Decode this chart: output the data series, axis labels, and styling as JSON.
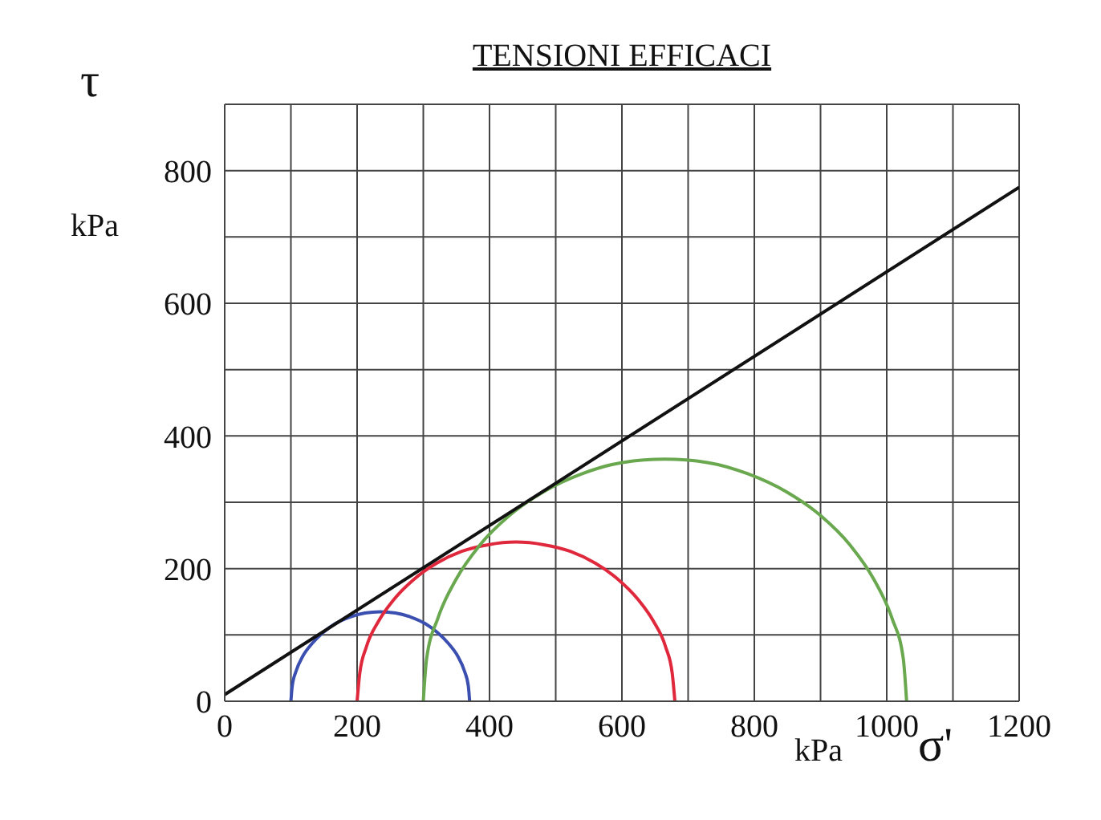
{
  "chart_data": {
    "type": "line",
    "title": "TENSIONI EFFICACI",
    "xlabel": "σ'",
    "ylabel": "τ",
    "annotations": [
      "kPa",
      "kPa"
    ],
    "xlim": [
      0,
      1200
    ],
    "ylim": [
      0,
      900
    ],
    "xticks": [
      0,
      {
        "value": 100,
        "label": null
      },
      200,
      {
        "value": 300,
        "label": null
      },
      400,
      {
        "value": 500,
        "label": null
      },
      600,
      {
        "value": 700,
        "label": null
      },
      800,
      {
        "value": 900,
        "label": null
      },
      1000,
      {
        "value": 1100,
        "label": null
      },
      1200
    ],
    "yticks": [
      0,
      {
        "value": 100,
        "label": null
      },
      200,
      {
        "value": 300,
        "label": null
      },
      400,
      {
        "value": 500,
        "label": null
      },
      600,
      {
        "value": 700,
        "label": null
      },
      800,
      {
        "value": 900,
        "label": null
      }
    ],
    "grid": true,
    "series": [
      {
        "color": "#3a4fb0",
        "x": [
          100,
          102,
          108,
          118,
          132,
          148,
          167,
          189,
          212,
          235,
          258,
          281,
          303,
          322,
          338,
          352,
          362,
          368,
          370
        ],
        "values": [
          0,
          23,
          46,
          68,
          87,
          103,
          117,
          127,
          133,
          135,
          133,
          127,
          117,
          103,
          87,
          68,
          46,
          23,
          0
        ]
      },
      {
        "color": "#e0283c",
        "x": [
          200,
          204,
          214,
          232,
          256,
          286,
          320,
          358,
          398,
          440,
          482,
          522,
          560,
          594,
          624,
          648,
          666,
          676,
          680
        ],
        "values": [
          0,
          42,
          82,
          120,
          154,
          184,
          208,
          226,
          236,
          240,
          236,
          226,
          208,
          184,
          154,
          120,
          82,
          42,
          0
        ]
      },
      {
        "color": "#6aa84f",
        "x": [
          300,
          305,
          322,
          349,
          385,
          430,
          482,
          540,
          601,
          665,
          729,
          790,
          848,
          900,
          945,
          981,
          1008,
          1025,
          1030
        ],
        "values": [
          0,
          64,
          125,
          183,
          235,
          280,
          316,
          343,
          360,
          365,
          360,
          343,
          316,
          280,
          235,
          183,
          125,
          64,
          0
        ]
      },
      {
        "color": "#111111",
        "x": [
          0,
          1200
        ],
        "values": [
          10,
          775
        ]
      }
    ]
  }
}
